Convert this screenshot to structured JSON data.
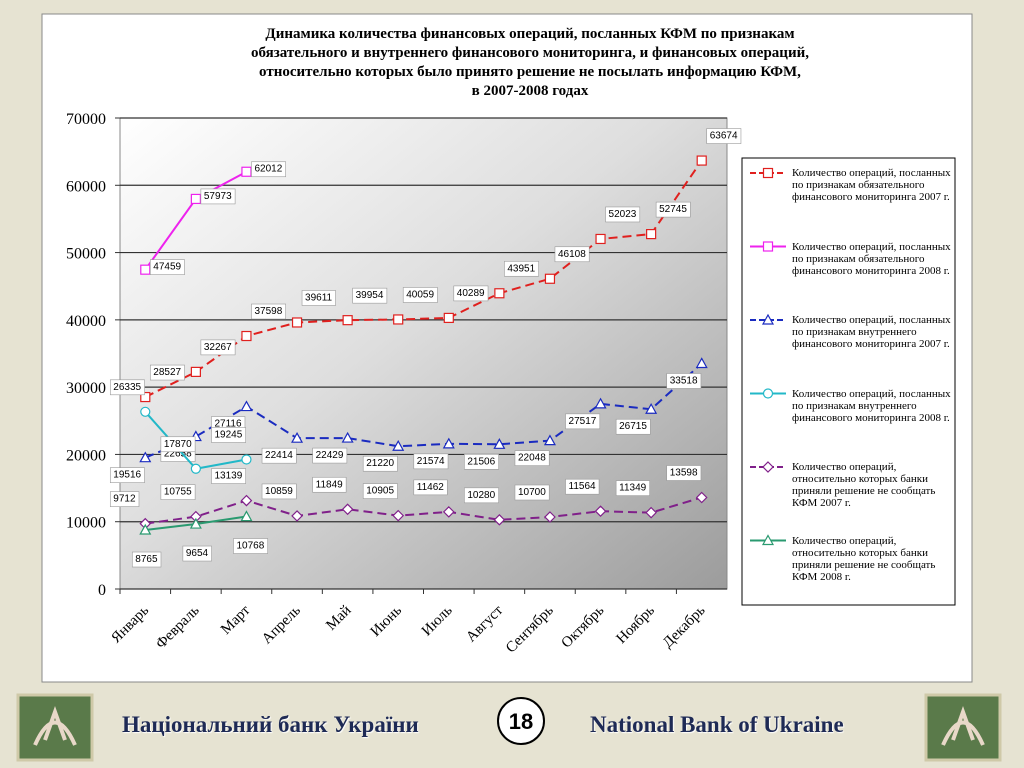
{
  "chart_data": {
    "type": "line",
    "title": [
      "Динамика количества финансовых операций, посланных КФМ по признакам",
      "обязательного и внутреннего финансового мониторинга, и финансовых операций,",
      "относительно которых было принято решение не посылать информацию КФМ,",
      "в 2007-2008 годах"
    ],
    "categories": [
      "Январь",
      "Февраль",
      "Март",
      "Апрель",
      "Май",
      "Июнь",
      "Июль",
      "Август",
      "Сентябрь",
      "Октябрь",
      "Ноябрь",
      "Декабрь"
    ],
    "ylim": [
      0,
      70000
    ],
    "yticks": [
      0,
      10000,
      20000,
      30000,
      40000,
      50000,
      60000,
      70000
    ],
    "grid": true,
    "legend": "right",
    "series": [
      {
        "name": "Количество операций, посланных по признакам обязательного финансового мониторинга 2007 г.",
        "color": "#e0201e",
        "dash": true,
        "marker": "square",
        "values": [
          28527,
          32267,
          37598,
          39611,
          39954,
          40059,
          40289,
          43951,
          46108,
          52023,
          52745,
          63674
        ]
      },
      {
        "name": "Количество операций, посланных по признакам обязательного финансового мониторинга 2008 г.",
        "color": "#ee22ee",
        "dash": false,
        "marker": "square",
        "values": [
          47459,
          57973,
          62012,
          null,
          null,
          null,
          null,
          null,
          null,
          null,
          null,
          null
        ]
      },
      {
        "name": "Количество операций, посланных по признакам внутреннего финансового мониторинга 2007 г.",
        "color": "#1a2bc0",
        "dash": true,
        "marker": "triangle",
        "values": [
          19516,
          22658,
          27116,
          22414,
          22429,
          21220,
          21574,
          21506,
          22048,
          27517,
          26715,
          33518
        ]
      },
      {
        "name": "Количество операций, посланных по признакам внутреннего финансового мониторинга 2008 г.",
        "color": "#22b8c8",
        "dash": false,
        "marker": "circle",
        "values": [
          26335,
          17870,
          19245,
          null,
          null,
          null,
          null,
          null,
          null,
          null,
          null,
          null
        ]
      },
      {
        "name": "Количество операций, относительно которых банки приняли решение не сообщать КФМ 2007 г.",
        "color": "#80208a",
        "dash": true,
        "marker": "diamond",
        "values": [
          9712,
          10755,
          13139,
          10859,
          11849,
          10905,
          11462,
          10280,
          10700,
          11564,
          11349,
          13598
        ]
      },
      {
        "name": "Количество операций, относительно которых банки приняли решение не сообщать КФМ 2008 г.",
        "color": "#2a9a70",
        "dash": false,
        "marker": "triangle",
        "values": [
          8765,
          9654,
          10768,
          null,
          null,
          null,
          null,
          null,
          null,
          null,
          null,
          null
        ]
      }
    ]
  },
  "footer": {
    "left": "Національний банк України",
    "page": "18",
    "right": "National Bank of Ukraine"
  }
}
